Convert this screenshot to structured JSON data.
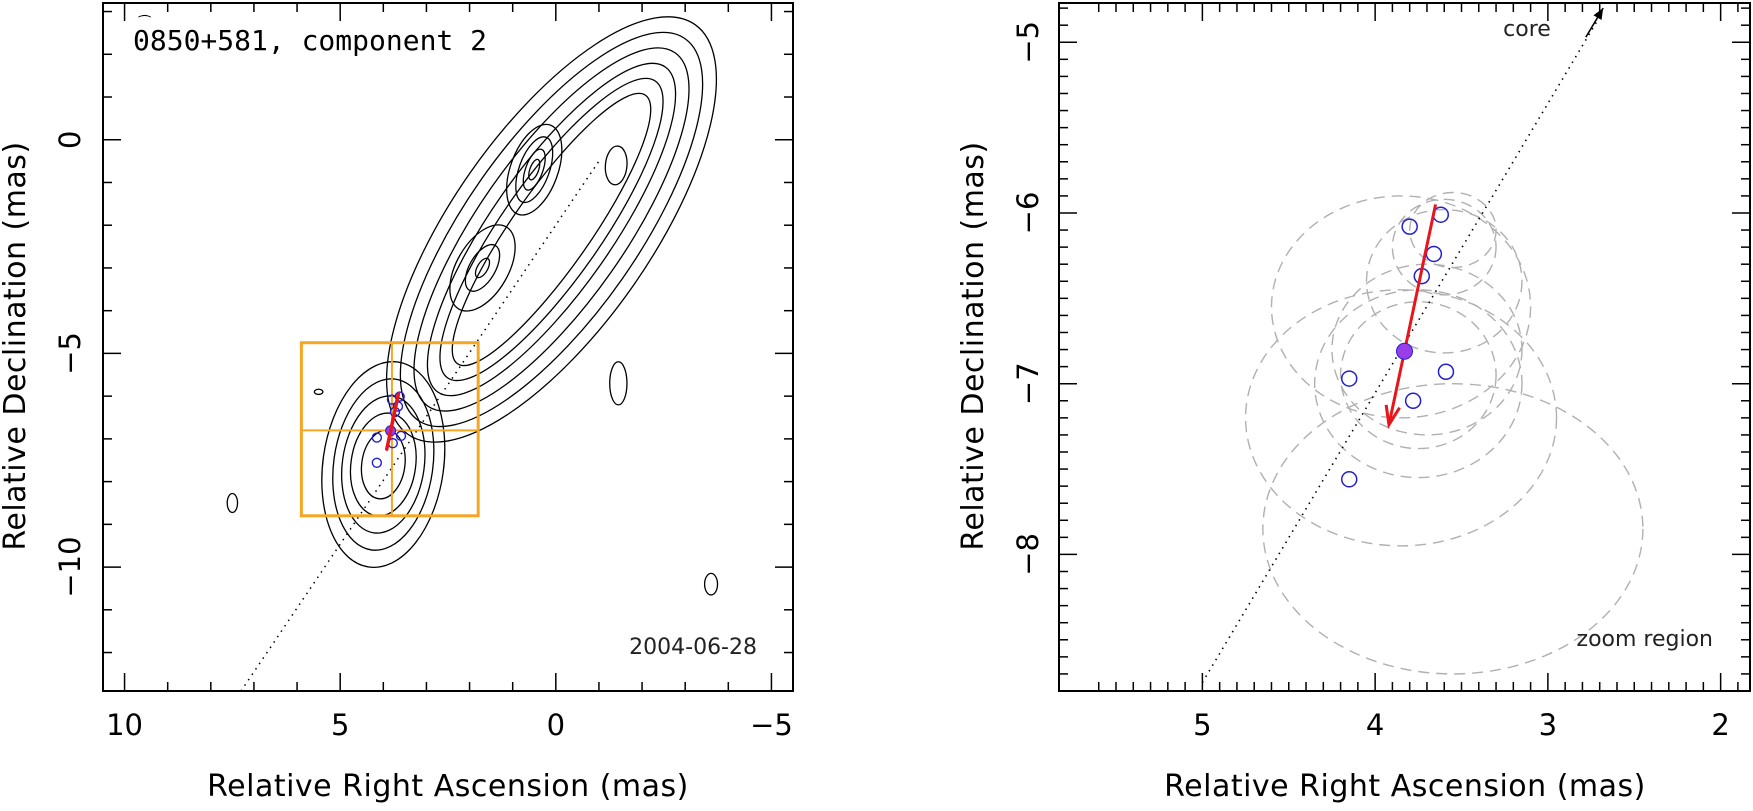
{
  "chart_data": [
    {
      "type": "contour-map",
      "title": "0850+581, component 2",
      "xlabel": "Relative Right Ascension (mas)",
      "ylabel": "Relative Declination (mas)",
      "xlim": [
        10.5,
        -5.5
      ],
      "ylim": [
        -12.9,
        3.2
      ],
      "x_ticks": [
        10,
        5,
        0,
        -5
      ],
      "y_ticks": [
        0,
        -5,
        -10
      ],
      "x_tick_labels": [
        "10",
        "5",
        "0",
        "−5"
      ],
      "y_tick_labels": [
        "0",
        "−5",
        "−10"
      ],
      "epoch_label": "2004-06-28",
      "contours": [
        {
          "name": "core-jet",
          "center": [
            0.1,
            -2.1
          ],
          "angle_deg": -55,
          "radii": [
            [
              5.8,
              2.3
            ],
            [
              5.4,
              2.0
            ],
            [
              5.0,
              1.7
            ],
            [
              4.6,
              1.4
            ],
            [
              4.2,
              1.15
            ],
            [
              3.8,
              0.9
            ]
          ]
        },
        {
          "name": "knot-A",
          "center": [
            0.5,
            -0.7
          ],
          "angle_deg": -70,
          "radii": [
            [
              1.1,
              0.55
            ],
            [
              0.8,
              0.35
            ],
            [
              0.5,
              0.2
            ],
            [
              0.25,
              0.1
            ]
          ]
        },
        {
          "name": "knot-B",
          "center": [
            1.7,
            -3.0
          ],
          "angle_deg": -60,
          "radii": [
            [
              1.1,
              0.6
            ],
            [
              0.6,
              0.3
            ],
            [
              0.25,
              0.12
            ]
          ]
        },
        {
          "name": "component-2",
          "center": [
            4.0,
            -7.6
          ],
          "angle_deg": -82,
          "radii": [
            [
              2.4,
              1.4
            ],
            [
              2.0,
              1.15
            ],
            [
              1.6,
              0.95
            ],
            [
              1.2,
              0.75
            ],
            [
              0.8,
              0.5
            ]
          ]
        },
        {
          "name": "blob-east",
          "center": [
            -1.4,
            -0.6
          ],
          "angle_deg": -85,
          "radii": [
            [
              0.45,
              0.25
            ]
          ]
        },
        {
          "name": "blob-east2",
          "center": [
            -1.45,
            -5.7
          ],
          "angle_deg": -90,
          "radii": [
            [
              0.5,
              0.2
            ]
          ]
        },
        {
          "name": "blob-west",
          "center": [
            7.5,
            -8.5
          ],
          "angle_deg": -90,
          "radii": [
            [
              0.22,
              0.12
            ]
          ]
        },
        {
          "name": "blob-sw",
          "center": [
            -3.6,
            -10.4
          ],
          "angle_deg": -90,
          "radii": [
            [
              0.25,
              0.15
            ]
          ]
        },
        {
          "name": "blob-small",
          "center": [
            5.5,
            -5.9
          ],
          "angle_deg": 0,
          "radii": [
            [
              0.1,
              0.06
            ]
          ]
        }
      ],
      "jet_axis": [
        [
          7.3,
          -12.9
        ],
        [
          -1.0,
          -0.5
        ]
      ],
      "zoom_box": {
        "x": [
          5.9,
          1.8
        ],
        "y": [
          -4.75,
          -8.8
        ],
        "cross": [
          3.8,
          -6.8
        ]
      },
      "components": [
        [
          4.15,
          -7.56
        ],
        [
          4.15,
          -6.97
        ],
        [
          3.8,
          -6.08
        ],
        [
          3.62,
          -6.01
        ],
        [
          3.66,
          -6.24
        ],
        [
          3.73,
          -6.37
        ],
        [
          3.78,
          -7.1
        ],
        [
          3.59,
          -6.93
        ]
      ],
      "mean_position": [
        3.83,
        -6.81
      ],
      "velocity_vector": [
        [
          3.65,
          -5.95
        ],
        [
          3.92,
          -7.24
        ]
      ]
    },
    {
      "type": "scatter",
      "title": "zoom region",
      "xlabel": "Relative Right Ascension (mas)",
      "ylabel": "Relative Declination (mas)",
      "xlim": [
        5.83,
        1.83
      ],
      "ylim": [
        -8.8,
        -4.77
      ],
      "x_ticks": [
        5,
        4,
        3,
        2
      ],
      "y_ticks": [
        -5,
        -6,
        -7,
        -8
      ],
      "x_tick_labels": [
        "5",
        "4",
        "3",
        "2"
      ],
      "y_tick_labels": [
        "−5",
        "−6",
        "−7",
        "−8"
      ],
      "core_label": "core",
      "components": [
        [
          4.15,
          -7.56
        ],
        [
          4.15,
          -6.97
        ],
        [
          3.8,
          -6.08
        ],
        [
          3.62,
          -6.01
        ],
        [
          3.66,
          -6.24
        ],
        [
          3.73,
          -6.37
        ],
        [
          3.78,
          -7.1
        ],
        [
          3.59,
          -6.93
        ]
      ],
      "uncertainty_ellipses": [
        [
          3.55,
          -7.85,
          1.1,
          0.85
        ],
        [
          3.85,
          -7.2,
          0.9,
          0.75
        ],
        [
          3.75,
          -7.0,
          0.6,
          0.55
        ],
        [
          3.7,
          -6.8,
          0.55,
          0.5
        ],
        [
          3.85,
          -6.55,
          0.75,
          0.65
        ],
        [
          3.6,
          -6.4,
          0.45,
          0.42
        ],
        [
          3.6,
          -6.2,
          0.3,
          0.28
        ],
        [
          3.55,
          -6.1,
          0.25,
          0.22
        ],
        [
          3.75,
          -6.95,
          0.45,
          0.43
        ]
      ],
      "jet_axis": [
        [
          5.0,
          -8.75
        ],
        [
          2.7,
          -4.85
        ]
      ],
      "core_arrow": [
        [
          2.78,
          -4.97
        ],
        [
          2.68,
          -4.8
        ]
      ],
      "mean_position": [
        3.83,
        -6.81
      ],
      "velocity_vector": [
        [
          3.65,
          -5.95
        ],
        [
          3.92,
          -7.24
        ]
      ]
    }
  ],
  "colors": {
    "box": "#F5A623",
    "vector": "#E8151B",
    "component": "#2020D0",
    "mean_fill": "#9A3CE8",
    "ellipse": "#B0B0B0"
  }
}
